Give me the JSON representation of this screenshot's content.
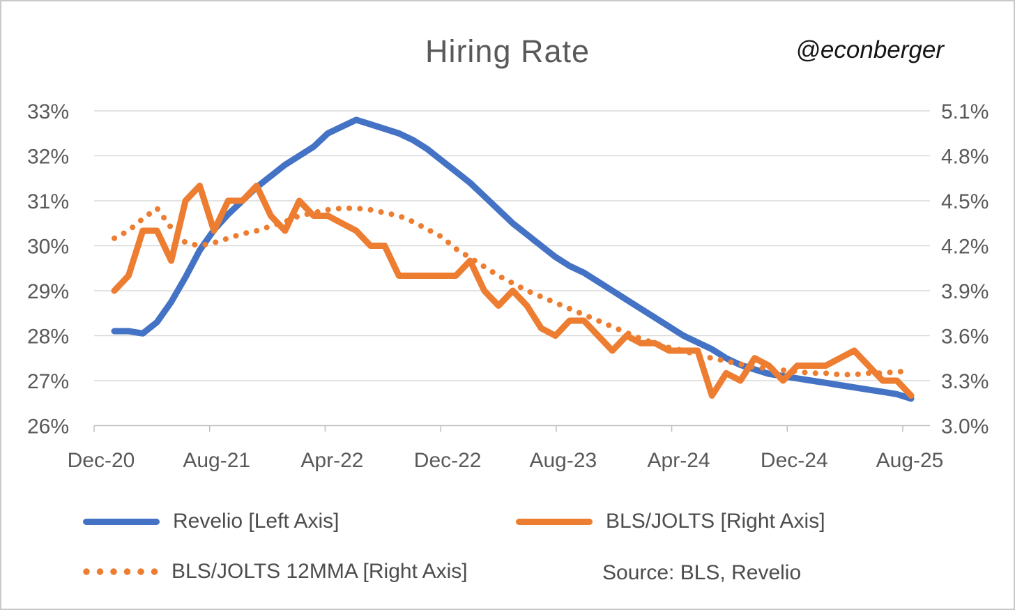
{
  "header": {
    "title": "Hiring Rate",
    "handle": "@econberger"
  },
  "legend": {
    "revelio_label": "Revelio [Left Axis]",
    "jolts_label": "BLS/JOLTS [Right Axis]",
    "jolts_12mma_label": "BLS/JOLTS 12MMA [Right Axis]"
  },
  "source_note": "Source: BLS, Revelio",
  "colors": {
    "revelio_blue": "#4472C4",
    "jolts_orange": "#ED7D31",
    "gridline": "#D9D9D9",
    "axis_line": "#BFBFBF",
    "axis_text": "#595959"
  },
  "chart_data": {
    "type": "line",
    "title": "Hiring Rate",
    "grid": true,
    "legend_position": "bottom",
    "x": [
      "Dec-20",
      "Jan-21",
      "Feb-21",
      "Mar-21",
      "Apr-21",
      "May-21",
      "Jun-21",
      "Jul-21",
      "Aug-21",
      "Sep-21",
      "Oct-21",
      "Nov-21",
      "Dec-21",
      "Jan-22",
      "Feb-22",
      "Mar-22",
      "Apr-22",
      "May-22",
      "Jun-22",
      "Jul-22",
      "Aug-22",
      "Sep-22",
      "Oct-22",
      "Nov-22",
      "Dec-22",
      "Jan-23",
      "Feb-23",
      "Mar-23",
      "Apr-23",
      "May-23",
      "Jun-23",
      "Jul-23",
      "Aug-23",
      "Sep-23",
      "Oct-23",
      "Nov-23",
      "Dec-23",
      "Jan-24",
      "Feb-24",
      "Mar-24",
      "Apr-24",
      "May-24",
      "Jun-24",
      "Jul-24",
      "Aug-24",
      "Sep-24",
      "Oct-24",
      "Nov-24",
      "Dec-24",
      "Jan-25",
      "Feb-25",
      "Mar-25",
      "Apr-25",
      "May-25",
      "Jun-25",
      "Jul-25",
      "Aug-25"
    ],
    "x_tick_labels": [
      "Dec-20",
      "Aug-21",
      "Apr-22",
      "Dec-22",
      "Aug-23",
      "Apr-24",
      "Dec-24",
      "Aug-25"
    ],
    "left_axis": {
      "title": "Revelio hiring rate",
      "min": 26,
      "max": 33,
      "tick_labels": [
        "33%",
        "32%",
        "31%",
        "30%",
        "29%",
        "28%",
        "27%",
        "26%"
      ]
    },
    "right_axis": {
      "title": "BLS/JOLTS hires rate",
      "min": 3.0,
      "max": 5.1,
      "tick_labels": [
        "5.1%",
        "4.8%",
        "4.5%",
        "4.2%",
        "3.9%",
        "3.6%",
        "3.3%",
        "3.0%"
      ]
    },
    "series": [
      {
        "name": "Revelio [Left Axis]",
        "axis": "left",
        "style": "solid",
        "color": "#4472C4",
        "values": [
          28.1,
          28.1,
          28.05,
          28.3,
          28.75,
          29.3,
          29.9,
          30.35,
          30.7,
          31.0,
          31.3,
          31.55,
          31.8,
          32.0,
          32.2,
          32.5,
          32.65,
          32.8,
          32.7,
          32.6,
          32.5,
          32.35,
          32.15,
          31.9,
          31.65,
          31.4,
          31.1,
          30.8,
          30.5,
          30.25,
          30.0,
          29.75,
          29.55,
          29.4,
          29.2,
          29.0,
          28.8,
          28.6,
          28.4,
          28.2,
          28.0,
          27.85,
          27.7,
          27.5,
          27.35,
          27.25,
          27.15,
          27.1,
          27.05,
          27.0,
          26.95,
          26.9,
          26.85,
          26.8,
          26.75,
          26.7,
          26.6
        ]
      },
      {
        "name": "BLS/JOLTS [Right Axis]",
        "axis": "right",
        "style": "solid",
        "color": "#ED7D31",
        "values": [
          3.9,
          4.0,
          4.3,
          4.3,
          4.1,
          4.5,
          4.6,
          4.3,
          4.5,
          4.5,
          4.6,
          4.4,
          4.3,
          4.5,
          4.4,
          4.4,
          4.35,
          4.3,
          4.2,
          4.2,
          4.0,
          4.0,
          4.0,
          4.0,
          4.0,
          4.1,
          3.9,
          3.8,
          3.9,
          3.8,
          3.65,
          3.6,
          3.7,
          3.7,
          3.6,
          3.5,
          3.6,
          3.55,
          3.55,
          3.5,
          3.5,
          3.5,
          3.2,
          3.35,
          3.3,
          3.45,
          3.4,
          3.3,
          3.4,
          3.4,
          3.4,
          3.45,
          3.5,
          3.4,
          3.3,
          3.3,
          3.2
        ]
      },
      {
        "name": "BLS/JOLTS 12MMA [Right Axis]",
        "axis": "right",
        "style": "dotted",
        "color": "#ED7D31",
        "values": [
          4.25,
          4.3,
          4.38,
          4.45,
          4.32,
          4.22,
          4.2,
          4.22,
          4.25,
          4.28,
          4.3,
          4.33,
          4.36,
          4.4,
          4.42,
          4.44,
          4.45,
          4.45,
          4.44,
          4.42,
          4.4,
          4.36,
          4.31,
          4.26,
          4.18,
          4.12,
          4.06,
          4.0,
          3.95,
          3.9,
          3.86,
          3.82,
          3.78,
          3.74,
          3.7,
          3.66,
          3.62,
          3.58,
          3.55,
          3.52,
          3.5,
          3.47,
          3.45,
          3.43,
          3.41,
          3.39,
          3.38,
          3.37,
          3.36,
          3.35,
          3.35,
          3.34,
          3.34,
          3.35,
          3.35,
          3.36,
          3.36
        ]
      }
    ]
  }
}
